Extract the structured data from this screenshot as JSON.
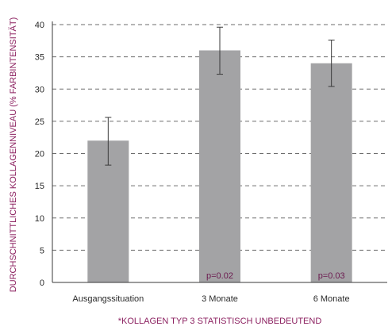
{
  "chart_data": {
    "type": "bar",
    "categories": [
      "Ausgangssituation",
      "3 Monate",
      "6 Monate"
    ],
    "values": [
      22,
      36,
      34
    ],
    "error": [
      {
        "low": 18.2,
        "high": 25.6
      },
      {
        "low": 32.3,
        "high": 39.6
      },
      {
        "low": 30.4,
        "high": 37.6
      }
    ],
    "bar_annotations": [
      "",
      "p=0.02",
      "p=0.03"
    ],
    "ylabel": "DURCHSCHNITTLICHES KOLLAGENNIVEAU (% FARBINTENSITÄT)",
    "xlabel": "",
    "footnote": "*KOLLAGEN TYP 3 STATISTISCH UNBEDEUTEND",
    "ylim": [
      0,
      40
    ],
    "yticks": [
      "0",
      "5",
      "10",
      "15",
      "20",
      "25",
      "30",
      "35",
      "40"
    ],
    "grid": true,
    "grid_style": "dashed",
    "colors": {
      "bar": "#a3a3a5",
      "error_bar": "#3a3a3a",
      "axis": "#3a3a3a",
      "grid": "#6e6e6e",
      "tick_text": "#2b2b2b",
      "ylabel_text": "#8b1f5f",
      "footnote_text": "#8b1f5f",
      "annotation_text": "#6b1a4f"
    }
  }
}
